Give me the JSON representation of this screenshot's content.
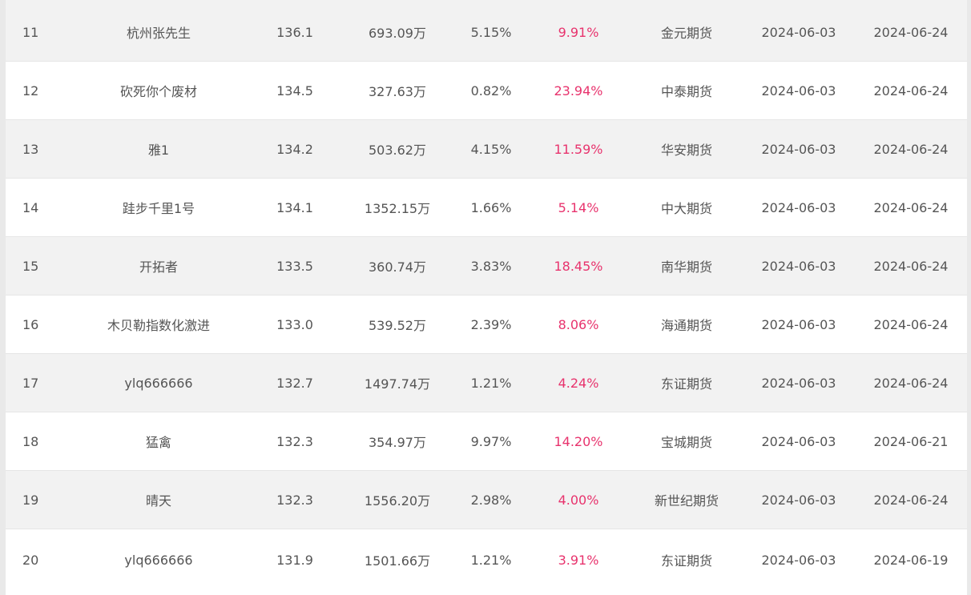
{
  "colors": {
    "return_positive": "#e8336d",
    "row_odd": "#f2f2f2",
    "row_even": "#ffffff",
    "text": "#555555"
  },
  "rows": [
    {
      "rank": "11",
      "name": "杭州张先生",
      "score": "136.1",
      "equity": "693.09万",
      "drawdown": "5.15%",
      "return": "9.91%",
      "broker": "金元期货",
      "start": "2024-06-03",
      "end": "2024-06-24"
    },
    {
      "rank": "12",
      "name": "砍死你个废材",
      "score": "134.5",
      "equity": "327.63万",
      "drawdown": "0.82%",
      "return": "23.94%",
      "broker": "中泰期货",
      "start": "2024-06-03",
      "end": "2024-06-24"
    },
    {
      "rank": "13",
      "name": "雅1",
      "score": "134.2",
      "equity": "503.62万",
      "drawdown": "4.15%",
      "return": "11.59%",
      "broker": "华安期货",
      "start": "2024-06-03",
      "end": "2024-06-24"
    },
    {
      "rank": "14",
      "name": "跬步千里1号",
      "score": "134.1",
      "equity": "1352.15万",
      "drawdown": "1.66%",
      "return": "5.14%",
      "broker": "中大期货",
      "start": "2024-06-03",
      "end": "2024-06-24"
    },
    {
      "rank": "15",
      "name": "开拓者",
      "score": "133.5",
      "equity": "360.74万",
      "drawdown": "3.83%",
      "return": "18.45%",
      "broker": "南华期货",
      "start": "2024-06-03",
      "end": "2024-06-24"
    },
    {
      "rank": "16",
      "name": "木贝勒指数化激进",
      "score": "133.0",
      "equity": "539.52万",
      "drawdown": "2.39%",
      "return": "8.06%",
      "broker": "海通期货",
      "start": "2024-06-03",
      "end": "2024-06-24"
    },
    {
      "rank": "17",
      "name": "ylq666666",
      "score": "132.7",
      "equity": "1497.74万",
      "drawdown": "1.21%",
      "return": "4.24%",
      "broker": "东证期货",
      "start": "2024-06-03",
      "end": "2024-06-24"
    },
    {
      "rank": "18",
      "name": "猛禽",
      "score": "132.3",
      "equity": "354.97万",
      "drawdown": "9.97%",
      "return": "14.20%",
      "broker": "宝城期货",
      "start": "2024-06-03",
      "end": "2024-06-21"
    },
    {
      "rank": "19",
      "name": "晴天",
      "score": "132.3",
      "equity": "1556.20万",
      "drawdown": "2.98%",
      "return": "4.00%",
      "broker": "新世纪期货",
      "start": "2024-06-03",
      "end": "2024-06-24"
    },
    {
      "rank": "20",
      "name": "ylq666666",
      "score": "131.9",
      "equity": "1501.66万",
      "drawdown": "1.21%",
      "return": "3.91%",
      "broker": "东证期货",
      "start": "2024-06-03",
      "end": "2024-06-19"
    }
  ]
}
